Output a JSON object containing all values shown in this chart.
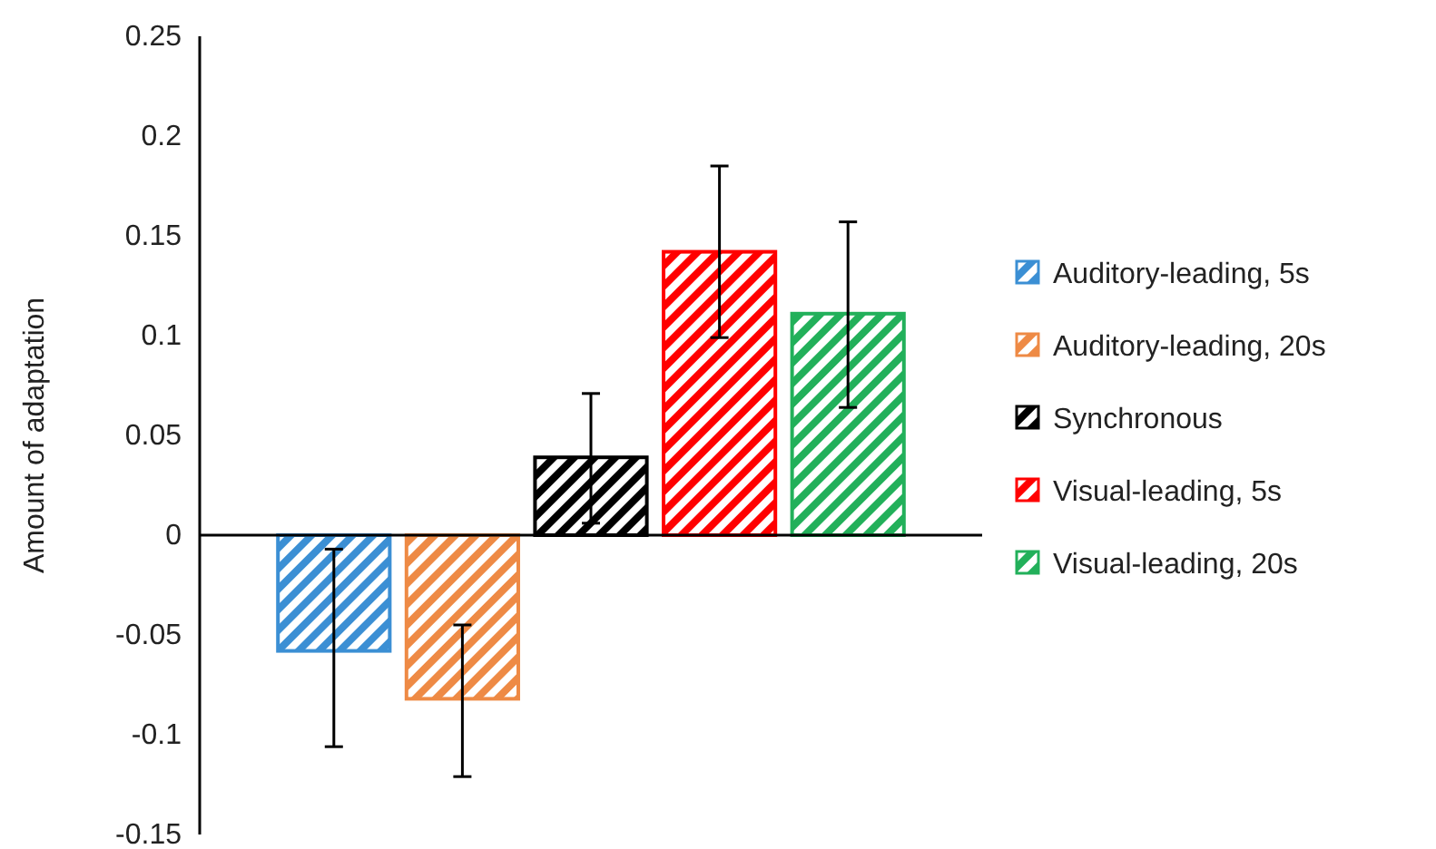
{
  "chart_data": {
    "type": "bar",
    "ylabel": "Amount of adaptation",
    "categories": [
      null
    ],
    "series": [
      {
        "name": "Auditory-leading, 5s",
        "color": "#3b8fd4",
        "values": [
          -0.058
        ],
        "errors": [
          [
            -0.106,
            -0.007
          ]
        ]
      },
      {
        "name": "Auditory-leading, 20s",
        "color": "#ee8a45",
        "values": [
          -0.082
        ],
        "errors": [
          [
            -0.121,
            -0.045
          ]
        ]
      },
      {
        "name": "Synchronous",
        "color": "#000000",
        "values": [
          0.039
        ],
        "errors": [
          [
            0.006,
            0.071
          ]
        ]
      },
      {
        "name": "Visual-leading, 5s",
        "color": "#ff0000",
        "values": [
          0.142
        ],
        "errors": [
          [
            0.099,
            0.185
          ]
        ]
      },
      {
        "name": "Visual-leading, 20s",
        "color": "#22b05a",
        "values": [
          0.111
        ],
        "errors": [
          [
            0.064,
            0.157
          ]
        ]
      }
    ],
    "ylim": [
      -0.15,
      0.25
    ],
    "yticks": [
      -0.15,
      -0.1,
      -0.05,
      0,
      0.05,
      0.1,
      0.15,
      0.2,
      0.25
    ],
    "legend": "right"
  }
}
